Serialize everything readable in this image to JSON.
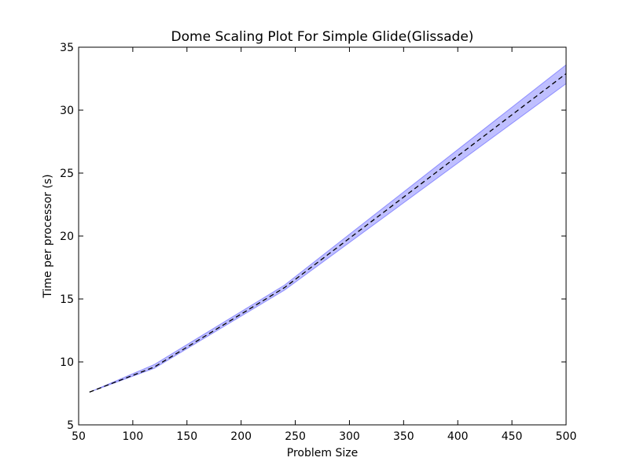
{
  "chart_data": {
    "type": "line",
    "title": "Dome  Scaling Plot For Simple Glide(Glissade)",
    "xlabel": "Problem Size",
    "ylabel": "Time per processor (s)",
    "xlim": [
      50,
      500
    ],
    "ylim": [
      5,
      35
    ],
    "xticks": [
      50,
      100,
      150,
      200,
      250,
      300,
      350,
      400,
      450,
      500
    ],
    "yticks": [
      5,
      10,
      15,
      20,
      25,
      30,
      35
    ],
    "grid": false,
    "legend": "none",
    "series": [
      {
        "style": "dashed",
        "color": "#000000",
        "x": [
          60,
          120,
          240,
          500
        ],
        "y": [
          7.6,
          9.6,
          15.9,
          32.9
        ],
        "band_lower": [
          7.6,
          9.5,
          15.7,
          32.1
        ],
        "band_upper": [
          7.6,
          9.8,
          16.1,
          33.6
        ],
        "band_color": "#0000ff"
      }
    ]
  }
}
